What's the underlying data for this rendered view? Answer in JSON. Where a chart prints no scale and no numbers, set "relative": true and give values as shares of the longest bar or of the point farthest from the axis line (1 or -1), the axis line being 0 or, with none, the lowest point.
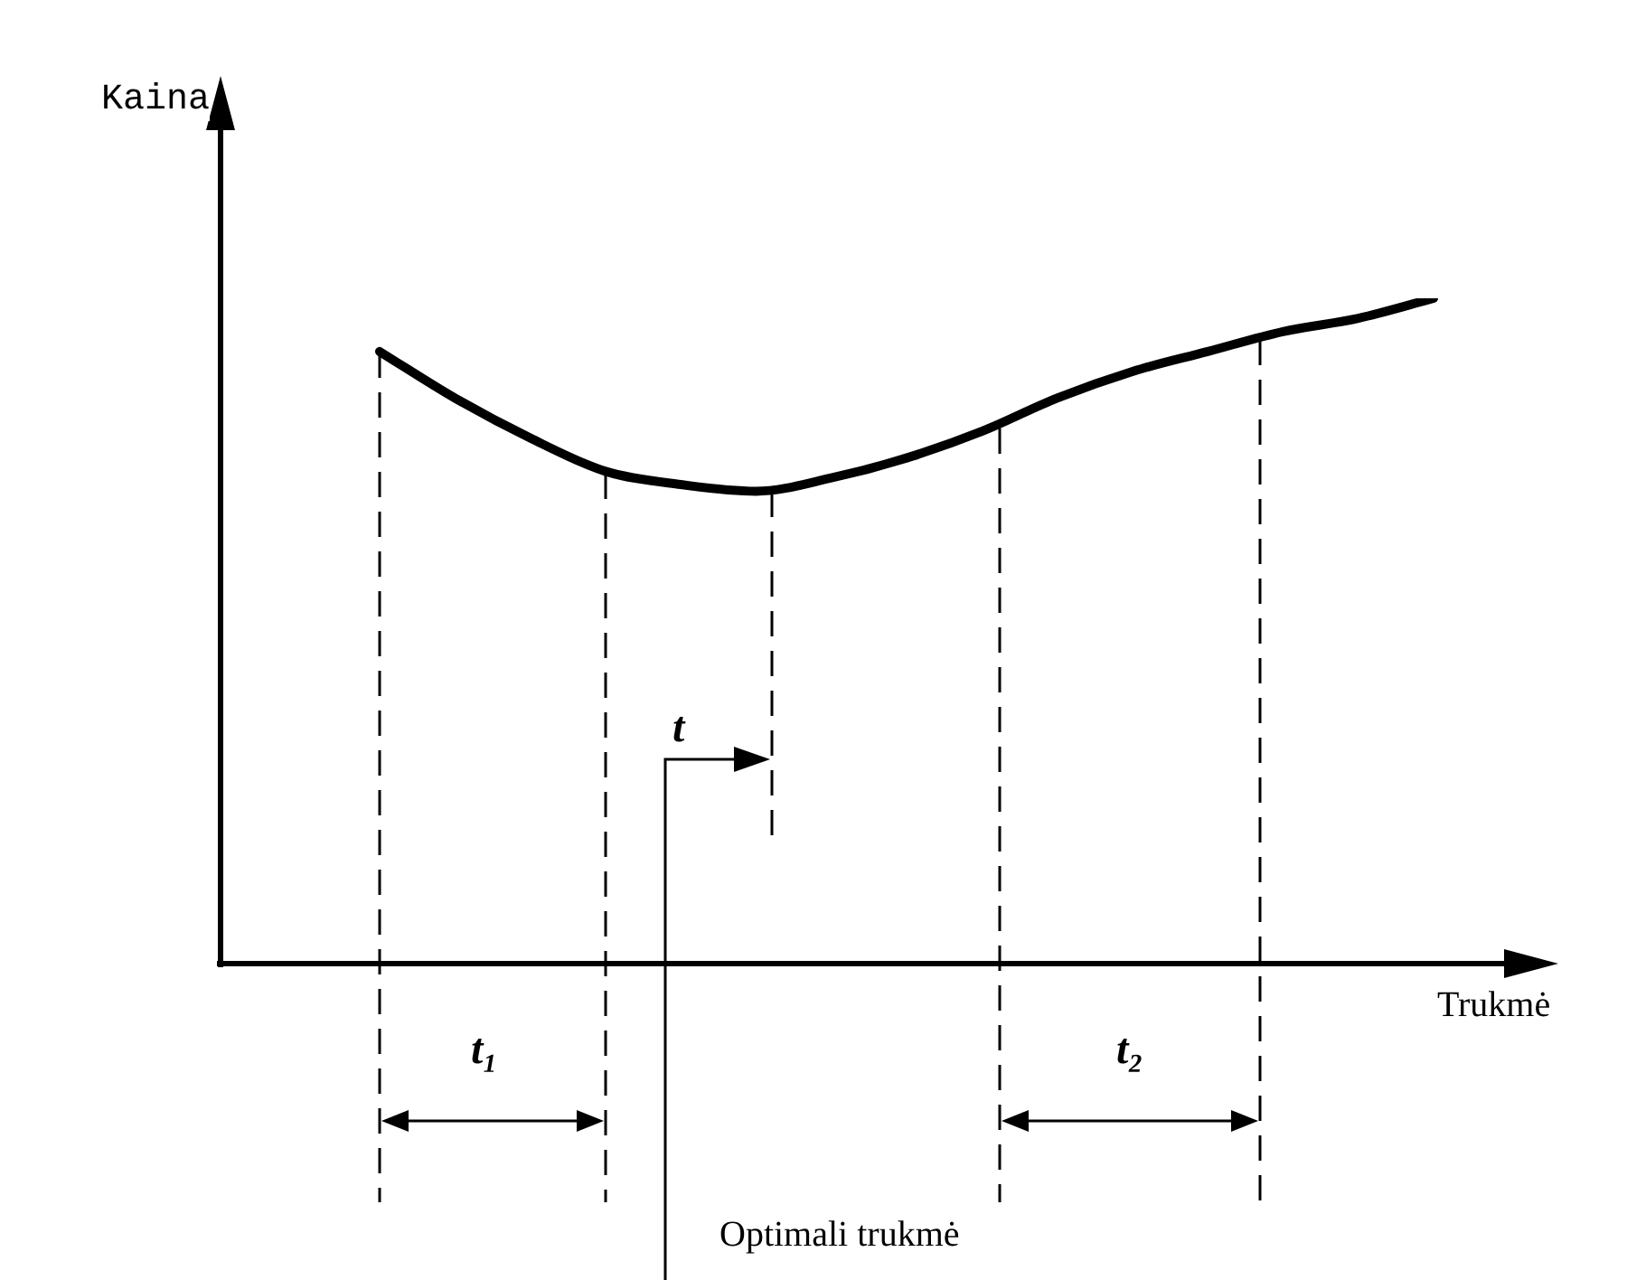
{
  "chart_data": {
    "type": "line",
    "relative": true,
    "xlabel": "Trukmė",
    "categories": [
      null,
      null,
      null,
      null,
      null,
      null,
      null,
      null,
      null,
      null,
      null,
      null,
      null,
      null,
      null
    ],
    "series": [
      {
        "color": "#000000",
        "values": [
          0.92,
          0.85,
          0.79,
          0.74,
          0.72,
          0.71,
          0.73,
          0.76,
          0.8,
          0.85,
          0.89,
          0.92,
          0.95,
          0.97,
          1
        ]
      }
    ],
    "marker": "none",
    "line_style": "solid",
    "annotations": [
      "Kaina",
      "t",
      "t₁",
      "t₂",
      "Optimali trukmė"
    ]
  }
}
